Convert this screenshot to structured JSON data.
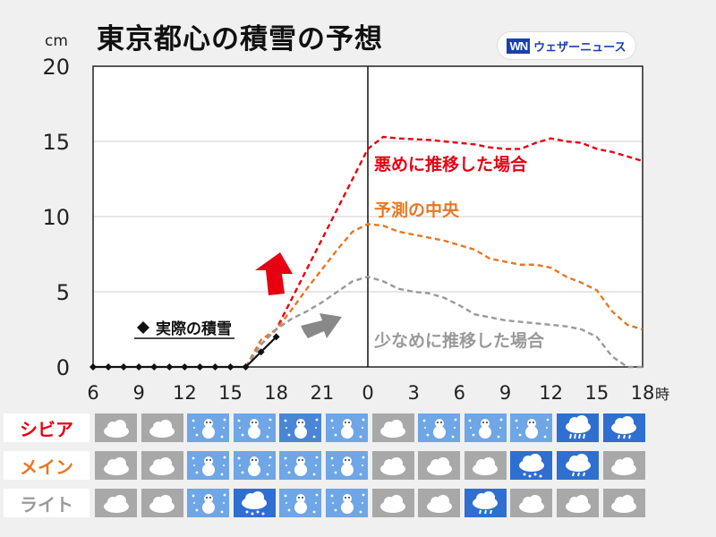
{
  "header": {
    "title": "東京都心の積雪の予想",
    "unit": "cm",
    "logo_mark": "WN",
    "logo_text": "ウェザーニュース"
  },
  "chart_data": {
    "type": "line",
    "ylabel": "cm",
    "ylim": [
      0,
      20
    ],
    "yticks": [
      0,
      5,
      10,
      15,
      20
    ],
    "x_hours": [
      6,
      7,
      8,
      9,
      10,
      11,
      12,
      13,
      14,
      15,
      16,
      17,
      18,
      19,
      20,
      21,
      22,
      23,
      24,
      25,
      26,
      27,
      28,
      29,
      30,
      31,
      32,
      33,
      34,
      35,
      36,
      37,
      38,
      39,
      40,
      41,
      42
    ],
    "xtick_labels": [
      "6",
      "9",
      "12",
      "15",
      "18",
      "21",
      "0",
      "3",
      "6",
      "9",
      "12",
      "15",
      "18"
    ],
    "xtick_hours": [
      6,
      9,
      12,
      15,
      18,
      21,
      24,
      27,
      30,
      33,
      36,
      39,
      42
    ],
    "x_suffix": "時",
    "now_hour": 24,
    "observed": {
      "name": "実際の積雪",
      "hours": [
        6,
        7,
        8,
        9,
        10,
        11,
        12,
        13,
        14,
        15,
        16,
        17,
        18
      ],
      "values": [
        0,
        0,
        0,
        0,
        0,
        0,
        0,
        0,
        0,
        0,
        0,
        1,
        2
      ]
    },
    "series": [
      {
        "name": "悪めに推移した場合",
        "color": "#e60012",
        "hours": [
          16,
          17,
          18,
          19,
          20,
          21,
          22,
          23,
          24,
          25,
          26,
          27,
          28,
          29,
          30,
          31,
          32,
          33,
          34,
          35,
          36,
          37,
          38,
          39,
          40,
          41,
          42
        ],
        "values": [
          0,
          1.5,
          2.5,
          4.5,
          6.5,
          8.5,
          10.5,
          12.5,
          14.5,
          15.3,
          15.2,
          15.15,
          15.1,
          15.0,
          14.9,
          14.8,
          14.6,
          14.5,
          14.5,
          14.9,
          15.2,
          15.0,
          14.9,
          14.5,
          14.3,
          14.0,
          13.7
        ]
      },
      {
        "name": "予測の中央",
        "color": "#e87722",
        "hours": [
          16,
          17,
          18,
          19,
          20,
          21,
          22,
          23,
          24,
          25,
          26,
          27,
          28,
          29,
          30,
          31,
          32,
          33,
          34,
          35,
          36,
          37,
          38,
          39,
          40,
          41,
          42
        ],
        "values": [
          0,
          1.8,
          2.5,
          3.8,
          5.2,
          6.5,
          7.8,
          9.0,
          9.5,
          9.4,
          9.0,
          8.8,
          8.6,
          8.4,
          8.1,
          7.8,
          7.2,
          7.0,
          6.8,
          6.8,
          6.6,
          6.0,
          5.6,
          5.1,
          3.7,
          2.8,
          2.5
        ]
      },
      {
        "name": "少なめに推移した場合",
        "color": "#999999",
        "hours": [
          16,
          17,
          18,
          19,
          20,
          21,
          22,
          23,
          24,
          25,
          26,
          27,
          28,
          29,
          30,
          31,
          32,
          33,
          34,
          35,
          36,
          37,
          38,
          39,
          40,
          41,
          42
        ],
        "values": [
          0,
          1.5,
          2.5,
          3.2,
          3.7,
          4.3,
          5.0,
          5.7,
          6.0,
          5.7,
          5.2,
          5.0,
          4.9,
          4.6,
          4.1,
          3.5,
          3.3,
          3.1,
          3.0,
          2.9,
          2.8,
          2.7,
          2.5,
          2.0,
          0.7,
          0.0,
          0.0
        ]
      }
    ]
  },
  "legend_labels": {
    "high": "悪めに推移した場合",
    "mid": "予測の中央",
    "low": "少なめに推移した場合",
    "observed": "実際の積雪"
  },
  "weather_rows": [
    {
      "label": "シビア",
      "color": "#e60012",
      "cells": [
        "cloud",
        "cloud",
        "snow",
        "snow",
        "snow-heavy",
        "snow",
        "cloud",
        "snow",
        "snow",
        "snow",
        "rain-heavy",
        "rain"
      ]
    },
    {
      "label": "メイン",
      "color": "#e87722",
      "cells": [
        "cloud",
        "cloud",
        "snow",
        "snow",
        "snow",
        "snow",
        "cloud",
        "cloud",
        "cloud",
        "snow-cloud",
        "rain",
        "cloud"
      ]
    },
    {
      "label": "ライト",
      "color": "#9a9a9a",
      "cells": [
        "cloud",
        "cloud",
        "snow",
        "snow-cloud",
        "snow",
        "snow",
        "cloud",
        "cloud",
        "rain",
        "cloud",
        "cloud",
        "cloud"
      ]
    }
  ],
  "colors": {
    "cloud_bg": "#a8a8a8",
    "snow_bg": "#6ea6e6",
    "snow_heavy_bg": "#4a86d6",
    "rain_bg": "#2f6fd0"
  }
}
